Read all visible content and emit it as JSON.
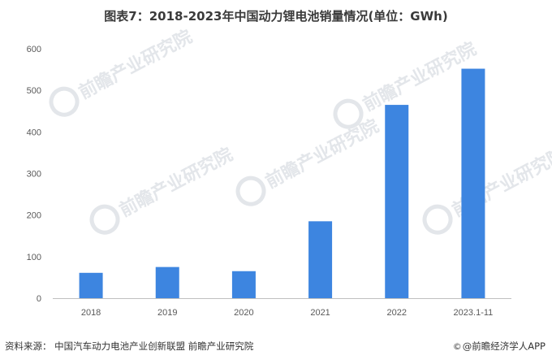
{
  "title": "图表7：2018-2023年中国动力锂电池销量情况(单位：GWh)",
  "footer": {
    "source": "资料来源：  中国汽车动力电池产业创新联盟 前瞻产业研究院",
    "brand": "@前瞻经济学人APP",
    "brand_icon": "copyright-icon"
  },
  "watermark": {
    "text": "前瞻产业研究院"
  },
  "colors": {
    "bar": "#3d85e0",
    "axis": "#bfbfbf",
    "text": "#595959",
    "title": "#3a3a3a"
  },
  "chart_data": {
    "type": "bar",
    "title": "图表7：2018-2023年中国动力锂电池销量情况(单位：GWh)",
    "categories": [
      "2018",
      "2019",
      "2020",
      "2021",
      "2022",
      "2023.1-11"
    ],
    "values": [
      61,
      75,
      65,
      185,
      465,
      552
    ],
    "ylim": [
      0,
      600
    ],
    "yticks": [
      0,
      100,
      200,
      300,
      400,
      500,
      600
    ],
    "xlabel": "",
    "ylabel": "",
    "grid": false,
    "legend": "none"
  }
}
